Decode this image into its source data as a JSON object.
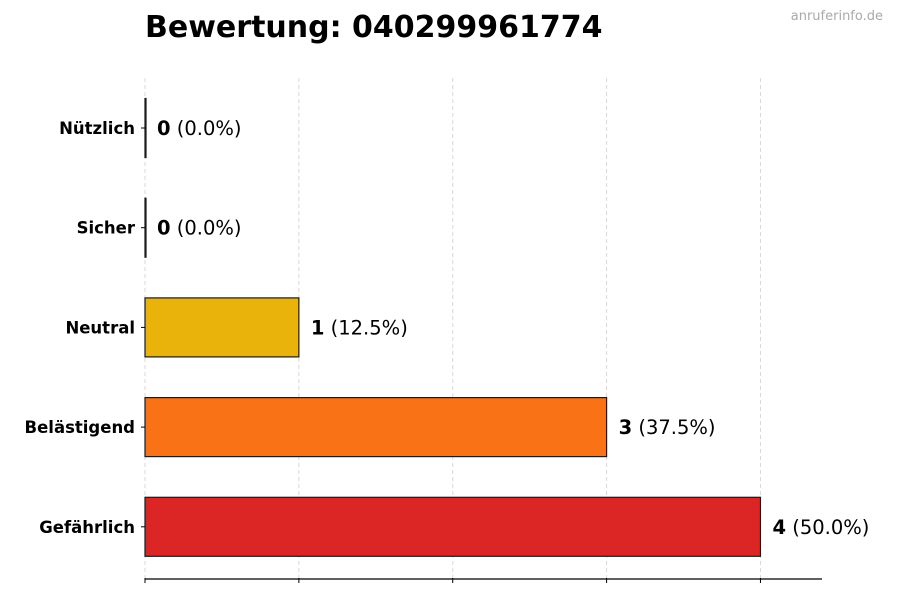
{
  "chart_title": "Bewertung: 040299961774",
  "watermark": "anruferinfo.de",
  "chart_data": {
    "type": "bar",
    "orientation": "horizontal",
    "title": "Bewertung: 040299961774",
    "xlabel": "",
    "ylabel": "",
    "categories": [
      "Nützlich",
      "Sicher",
      "Neutral",
      "Belästigend",
      "Gefährlich"
    ],
    "values": [
      0,
      0,
      1,
      3,
      4
    ],
    "value_labels": [
      {
        "count": "0",
        "percent": "(0.0%)"
      },
      {
        "count": "0",
        "percent": "(0.0%)"
      },
      {
        "count": "1",
        "percent": "(12.5%)"
      },
      {
        "count": "3",
        "percent": "(37.5%)"
      },
      {
        "count": "4",
        "percent": "(50.0%)"
      }
    ],
    "colors": [
      "#2e9e4f",
      "#3aa7d8",
      "#eab30b",
      "#f97316",
      "#dc2626"
    ],
    "xlim": [
      0,
      4.4
    ],
    "grid": true,
    "grid_axis": "x",
    "grid_style": "dashed",
    "tick_labels_visible": false,
    "legend": "none"
  }
}
